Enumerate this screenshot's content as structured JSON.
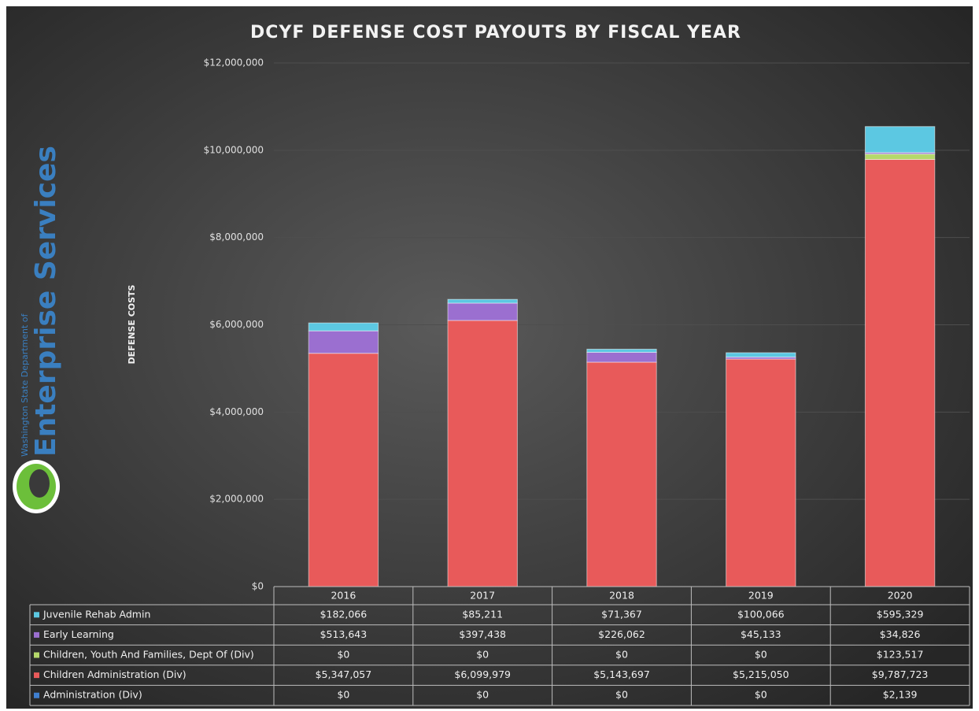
{
  "chart_data": {
    "type": "bar",
    "stacked": true,
    "title": "DCYF DEFENSE COST PAYOUTS BY FISCAL YEAR",
    "y_label": "DEFENSE COSTS",
    "categories": [
      "2016",
      "2017",
      "2018",
      "2019",
      "2020"
    ],
    "series": [
      {
        "name": "Administration (Div)",
        "color": "#3f7fd0",
        "values": [
          0,
          0,
          0,
          0,
          2139
        ],
        "value_labels": [
          "$0",
          "$0",
          "$0",
          "$0",
          "$2,139"
        ]
      },
      {
        "name": "Children Administration (Div)",
        "color": "#e85a5a",
        "values": [
          5347057,
          6099979,
          5143697,
          5215050,
          9787723
        ],
        "value_labels": [
          "$5,347,057",
          "$6,099,979",
          "$5,143,697",
          "$5,215,050",
          "$9,787,723"
        ]
      },
      {
        "name": "Children, Youth And Families, Dept Of (Div)",
        "color": "#b5d86a",
        "values": [
          0,
          0,
          0,
          0,
          123517
        ],
        "value_labels": [
          "$0",
          "$0",
          "$0",
          "$0",
          "$123,517"
        ]
      },
      {
        "name": "Early Learning",
        "color": "#9b6fd0",
        "values": [
          513643,
          397438,
          226062,
          45133,
          34826
        ],
        "value_labels": [
          "$513,643",
          "$397,438",
          "$226,062",
          "$45,133",
          "$34,826"
        ]
      },
      {
        "name": "Juvenile Rehab Admin",
        "color": "#5cc8e2",
        "values": [
          182066,
          85211,
          71367,
          100066,
          595329
        ],
        "value_labels": [
          "$182,066",
          "$85,211",
          "$71,367",
          "$100,066",
          "$595,329"
        ]
      }
    ],
    "ylim": [
      0,
      12000000
    ],
    "yticks": [
      {
        "value": 0,
        "label": "$0"
      },
      {
        "value": 2000000,
        "label": "$2,000,000"
      },
      {
        "value": 4000000,
        "label": "$4,000,000"
      },
      {
        "value": 6000000,
        "label": "$6,000,000"
      },
      {
        "value": 8000000,
        "label": "$8,000,000"
      },
      {
        "value": 10000000,
        "label": "$10,000,000"
      },
      {
        "value": 12000000,
        "label": "$12,000,000"
      }
    ],
    "grid": true,
    "legend": "table"
  },
  "logo": {
    "line1": "Washington State Department of",
    "line2": "Enterprise Services"
  }
}
